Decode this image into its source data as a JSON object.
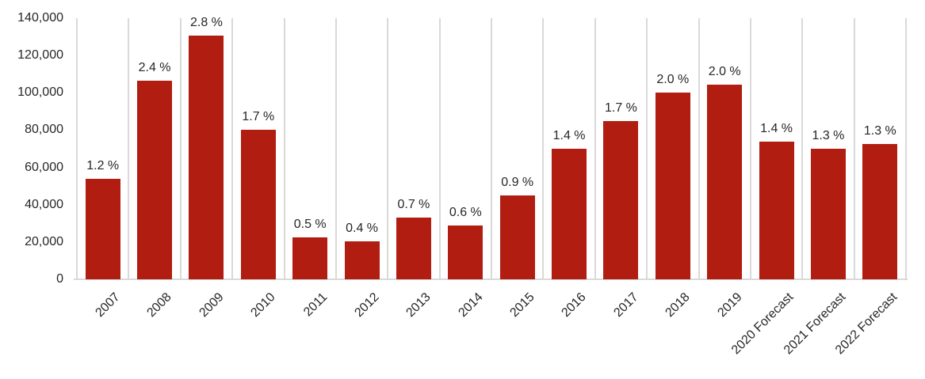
{
  "chart_data": {
    "type": "bar",
    "title": "",
    "xlabel": "",
    "ylabel": "",
    "categories": [
      "2007",
      "2008",
      "2009",
      "2010",
      "2011",
      "2012",
      "2013",
      "2014",
      "2015",
      "2016",
      "2017",
      "2018",
      "2019",
      "2020 Forecast",
      "2021 Forecast",
      "2022 Forecast"
    ],
    "values": [
      54000,
      106500,
      130500,
      80000,
      22500,
      20500,
      33000,
      29000,
      45000,
      70000,
      85000,
      100000,
      104500,
      74000,
      70000,
      72500
    ],
    "data_labels": [
      "1.2 %",
      "2.4 %",
      "2.8 %",
      "1.7 %",
      "0.5 %",
      "0.4 %",
      "0.7 %",
      "0.6 %",
      "0.9 %",
      "1.4 %",
      "1.7 %",
      "2.0 %",
      "2.0 %",
      "1.4 %",
      "1.3 %",
      "1.3 %"
    ],
    "ylim": [
      0,
      140000
    ],
    "ytick_values": [
      0,
      20000,
      40000,
      60000,
      80000,
      100000,
      120000,
      140000
    ],
    "yticks": [
      "0",
      "20,000",
      "40,000",
      "60,000",
      "80,000",
      "100,000",
      "120,000",
      "140,000"
    ],
    "grid": "vertical-only",
    "legend": "none",
    "colors": {
      "bar": "#B21D11",
      "gridline": "#D9D9D9",
      "axis_line": "#D9D9D9",
      "text": "#262626",
      "background": "#FFFFFF"
    }
  }
}
